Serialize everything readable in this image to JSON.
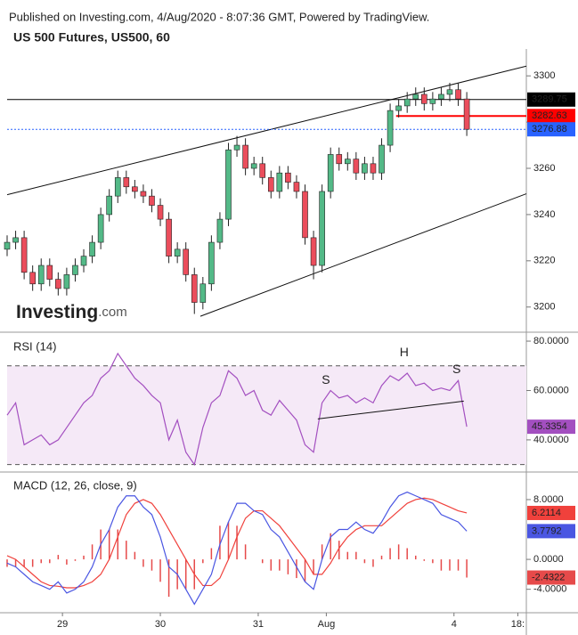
{
  "header": {
    "published": "Published on Investing.com, 4/Aug/2020 - 8:07:36 GMT, Powered by TradingView.",
    "logo": {
      "name": "Investing",
      "suffix": ".com"
    }
  },
  "chart_data": [
    {
      "type": "candlestick",
      "title": "US 500 Futures, US500, 60",
      "x": [
        0,
        2,
        4,
        6,
        8,
        10,
        12,
        14,
        16,
        18,
        20,
        22,
        24,
        26,
        28,
        30,
        32,
        34,
        36,
        38,
        40,
        42,
        44,
        46,
        48,
        50,
        52,
        54,
        56,
        58,
        60,
        62,
        64,
        66,
        68,
        70,
        72,
        74,
        76,
        78,
        80,
        82,
        84,
        86,
        88,
        90,
        92,
        94,
        96,
        98,
        100,
        102,
        104,
        106,
        108
      ],
      "open": [
        3225,
        3228,
        3230,
        3215,
        3210,
        3218,
        3212,
        3208,
        3214,
        3218,
        3222,
        3228,
        3240,
        3248,
        3256,
        3252,
        3250,
        3248,
        3244,
        3238,
        3222,
        3225,
        3214,
        3202,
        3210,
        3228,
        3238,
        3268,
        3270,
        3260,
        3262,
        3256,
        3250,
        3258,
        3254,
        3250,
        3230,
        3218,
        3250,
        3266,
        3262,
        3264,
        3258,
        3262,
        3258,
        3270,
        3285,
        3287,
        3290,
        3292,
        3288,
        3290,
        3292,
        3294,
        3290
      ],
      "high": [
        3231,
        3233,
        3233,
        3218,
        3221,
        3221,
        3215,
        3217,
        3221,
        3225,
        3231,
        3243,
        3251,
        3259,
        3259,
        3255,
        3253,
        3251,
        3247,
        3241,
        3228,
        3228,
        3217,
        3213,
        3231,
        3241,
        3271,
        3274,
        3273,
        3265,
        3265,
        3259,
        3261,
        3261,
        3257,
        3253,
        3233,
        3253,
        3269,
        3269,
        3267,
        3267,
        3265,
        3265,
        3273,
        3288,
        3290,
        3293,
        3295,
        3295,
        3293,
        3295,
        3297,
        3297,
        3293
      ],
      "low": [
        3222,
        3225,
        3212,
        3207,
        3207,
        3209,
        3205,
        3205,
        3211,
        3215,
        3219,
        3225,
        3237,
        3245,
        3249,
        3247,
        3245,
        3241,
        3235,
        3219,
        3219,
        3211,
        3197,
        3199,
        3207,
        3225,
        3235,
        3265,
        3257,
        3257,
        3253,
        3247,
        3247,
        3251,
        3247,
        3227,
        3212,
        3215,
        3247,
        3259,
        3259,
        3255,
        3255,
        3255,
        3255,
        3267,
        3282,
        3284,
        3287,
        3285,
        3285,
        3287,
        3289,
        3287,
        3274
      ],
      "close": [
        3228,
        3230,
        3215,
        3210,
        3218,
        3212,
        3208,
        3214,
        3218,
        3222,
        3228,
        3240,
        3248,
        3256,
        3252,
        3250,
        3248,
        3244,
        3238,
        3222,
        3225,
        3214,
        3202,
        3210,
        3228,
        3238,
        3268,
        3270,
        3260,
        3262,
        3256,
        3250,
        3258,
        3254,
        3250,
        3230,
        3218,
        3250,
        3266,
        3262,
        3264,
        3258,
        3262,
        3258,
        3270,
        3285,
        3287,
        3290,
        3292,
        3288,
        3290,
        3292,
        3294,
        3290,
        3276.88
      ],
      "up_color": "#53b987",
      "down_color": "#eb4d5c",
      "last_color": "#2962ff",
      "xlim": [
        0,
        122
      ],
      "ylim": [
        3189.5,
        3309.7
      ],
      "yticks": [
        3200,
        3220,
        3240,
        3260,
        3280,
        3300
      ],
      "trendlines": [
        {
          "x": [
            0,
            122
          ],
          "values": [
            3248.6,
            3304.2
          ]
        },
        {
          "x": [
            45.4,
            122
          ],
          "values": [
            3196,
            3249
          ]
        }
      ],
      "levels": [
        {
          "value": 3289.75,
          "color": "#000000",
          "x": [
            0,
            122
          ]
        },
        {
          "value": 3282.63,
          "color": "#ff0000",
          "x": [
            91.4,
            122
          ]
        }
      ]
    },
    {
      "type": "line",
      "title": "RSI (14)",
      "x": [
        0,
        2,
        4,
        6,
        8,
        10,
        12,
        14,
        16,
        18,
        20,
        22,
        24,
        26,
        28,
        30,
        32,
        34,
        36,
        38,
        40,
        42,
        44,
        46,
        48,
        50,
        52,
        54,
        56,
        58,
        60,
        62,
        64,
        66,
        68,
        70,
        72,
        74,
        76,
        78,
        80,
        82,
        84,
        86,
        88,
        90,
        92,
        94,
        96,
        98,
        100,
        102,
        104,
        106,
        108
      ],
      "values": [
        50,
        55,
        38,
        40,
        42,
        38,
        40,
        45,
        50,
        55,
        58,
        65,
        68,
        75,
        70,
        65,
        62,
        58,
        55,
        40,
        48,
        35,
        30,
        45,
        55,
        58,
        68,
        65,
        58,
        60,
        52,
        50,
        56,
        52,
        48,
        38,
        35,
        55,
        60,
        57,
        58,
        55,
        57,
        55,
        62,
        66,
        64,
        67,
        62,
        63,
        60,
        61,
        60,
        64,
        45.3354
      ],
      "color": "#a34fc0",
      "band": [
        30,
        70
      ],
      "band_color": "#f5e9f7",
      "xlim": [
        0,
        122
      ],
      "ylim": [
        27.7,
        82.9
      ],
      "yticks": [
        {
          "value": 40,
          "label": "40.0000"
        },
        {
          "value": 60,
          "label": "60.0000"
        },
        {
          "value": 80,
          "label": "80.0000"
        }
      ],
      "trendline": {
        "x": [
          73,
          107.3
        ],
        "values": [
          48.5,
          55.7
        ]
      },
      "annotations": [
        {
          "text": "S",
          "x": 74.9,
          "value": 64
        },
        {
          "text": "H",
          "x": 93.3,
          "value": 75.3
        },
        {
          "text": "S",
          "x": 105.6,
          "value": 68.4
        }
      ]
    },
    {
      "type": "line",
      "title": "MACD (12, 26, close, 9)",
      "x": [
        0,
        2,
        4,
        6,
        8,
        10,
        12,
        14,
        16,
        18,
        20,
        22,
        24,
        26,
        28,
        30,
        32,
        34,
        36,
        38,
        40,
        42,
        44,
        46,
        48,
        50,
        52,
        54,
        56,
        58,
        60,
        62,
        64,
        66,
        68,
        70,
        72,
        74,
        76,
        78,
        80,
        82,
        84,
        86,
        88,
        90,
        92,
        94,
        96,
        98,
        100,
        102,
        104,
        106,
        108
      ],
      "series": [
        {
          "color": "#f0413c",
          "values": [
            0.5,
            0,
            -1,
            -2,
            -3,
            -3.5,
            -3.6,
            -3.8,
            -3.8,
            -3.5,
            -3,
            -2,
            0,
            3,
            6,
            7.5,
            8,
            7.5,
            6,
            4,
            2,
            0,
            -2,
            -3.5,
            -3.5,
            -2.5,
            0,
            3,
            5.5,
            6.5,
            6.5,
            5.5,
            4.5,
            3,
            1.5,
            0,
            -2,
            -2,
            -0.5,
            1.5,
            3,
            4,
            4.5,
            4.5,
            4.5,
            5.5,
            6.5,
            7.5,
            8,
            8.2,
            8,
            7.5,
            7,
            6.5,
            6.2114
          ]
        },
        {
          "color": "#4a56e2",
          "values": [
            -0.5,
            -1,
            -2,
            -3,
            -3.5,
            -4,
            -3,
            -4.5,
            -4,
            -3,
            -1,
            2,
            4,
            7,
            8.5,
            8.5,
            7,
            6,
            3,
            -1,
            -2,
            -4,
            -6,
            -4,
            -2,
            2,
            5,
            7.5,
            7.5,
            6.5,
            6,
            4,
            3,
            1,
            -1,
            -3,
            -4,
            0,
            3,
            4,
            4,
            5,
            4,
            3.5,
            5,
            7,
            8.5,
            9,
            8.5,
            8,
            7.5,
            6,
            5.5,
            5,
            3.7792
          ]
        }
      ],
      "histogram": {
        "color": "#e64a4a",
        "values": [
          -1,
          -1,
          -1,
          -1,
          -0.5,
          -0.5,
          0.6,
          -0.7,
          -0.2,
          0.5,
          2,
          4,
          4,
          4,
          2.5,
          1,
          -1,
          -1.5,
          -3,
          -5,
          -4,
          -4,
          -4,
          -0.5,
          1.5,
          4.5,
          5,
          4.5,
          2,
          0,
          -0.5,
          -1.5,
          -1.5,
          -2,
          -2.5,
          -3,
          -2,
          2,
          3.5,
          2.5,
          1,
          1,
          -0.5,
          -1,
          0.5,
          1.5,
          2,
          1.5,
          0.5,
          -0.2,
          -0.5,
          -1.5,
          -1.5,
          -1.5,
          -2.4322
        ]
      },
      "xlim": [
        0,
        122
      ],
      "ylim": [
        -7.14,
        11.57
      ],
      "yticks": [
        {
          "value": -4,
          "label": "-4.0000"
        },
        {
          "value": 0,
          "label": "0.0000"
        },
        {
          "value": 8,
          "label": "8.0000"
        }
      ],
      "xticks": [
        {
          "value": 13,
          "label": "29"
        },
        {
          "value": 36,
          "label": "30"
        },
        {
          "value": 59,
          "label": "31"
        },
        {
          "value": 75,
          "label": "Aug"
        },
        {
          "value": 105,
          "label": "4"
        },
        {
          "value": 120,
          "label": "18:"
        }
      ]
    }
  ]
}
